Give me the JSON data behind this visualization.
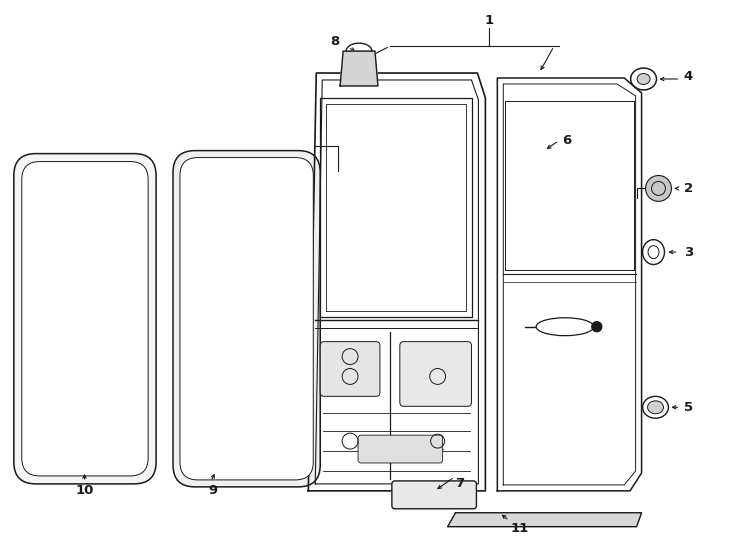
{
  "bg_color": "#ffffff",
  "lc": "#1a1a1a",
  "lw": 1.0,
  "fig_w": 7.34,
  "fig_h": 5.4,
  "dpi": 100
}
